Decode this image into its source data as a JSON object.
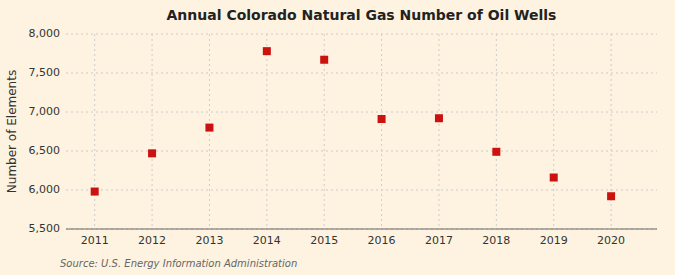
{
  "chart_data": {
    "type": "scatter",
    "title": "Annual Colorado Natural Gas Number of Oil Wells",
    "ylabel": "Number of Elements",
    "annotation": "Source: U.S. Energy Information Administration",
    "x": [
      2011,
      2012,
      2013,
      2014,
      2015,
      2016,
      2017,
      2018,
      2019,
      2020
    ],
    "values": [
      5980,
      6470,
      6800,
      7780,
      7670,
      6910,
      6920,
      6490,
      6160,
      5920
    ],
    "xlim": [
      2010.5,
      2020.8
    ],
    "xticks": [
      2011,
      2012,
      2013,
      2014,
      2015,
      2016,
      2017,
      2018,
      2019,
      2020
    ],
    "ylim": [
      5500,
      8000
    ],
    "yticks": [
      {
        "value": 5500,
        "label": "5,500"
      },
      {
        "value": 6000,
        "label": "6,000"
      },
      {
        "value": 6500,
        "label": "6,500"
      },
      {
        "value": 7000,
        "label": "7,000"
      },
      {
        "value": 7500,
        "label": "7,500"
      },
      {
        "value": 8000,
        "label": "8,000"
      }
    ],
    "color": "#cc1111",
    "marker": "square",
    "grid": true
  }
}
